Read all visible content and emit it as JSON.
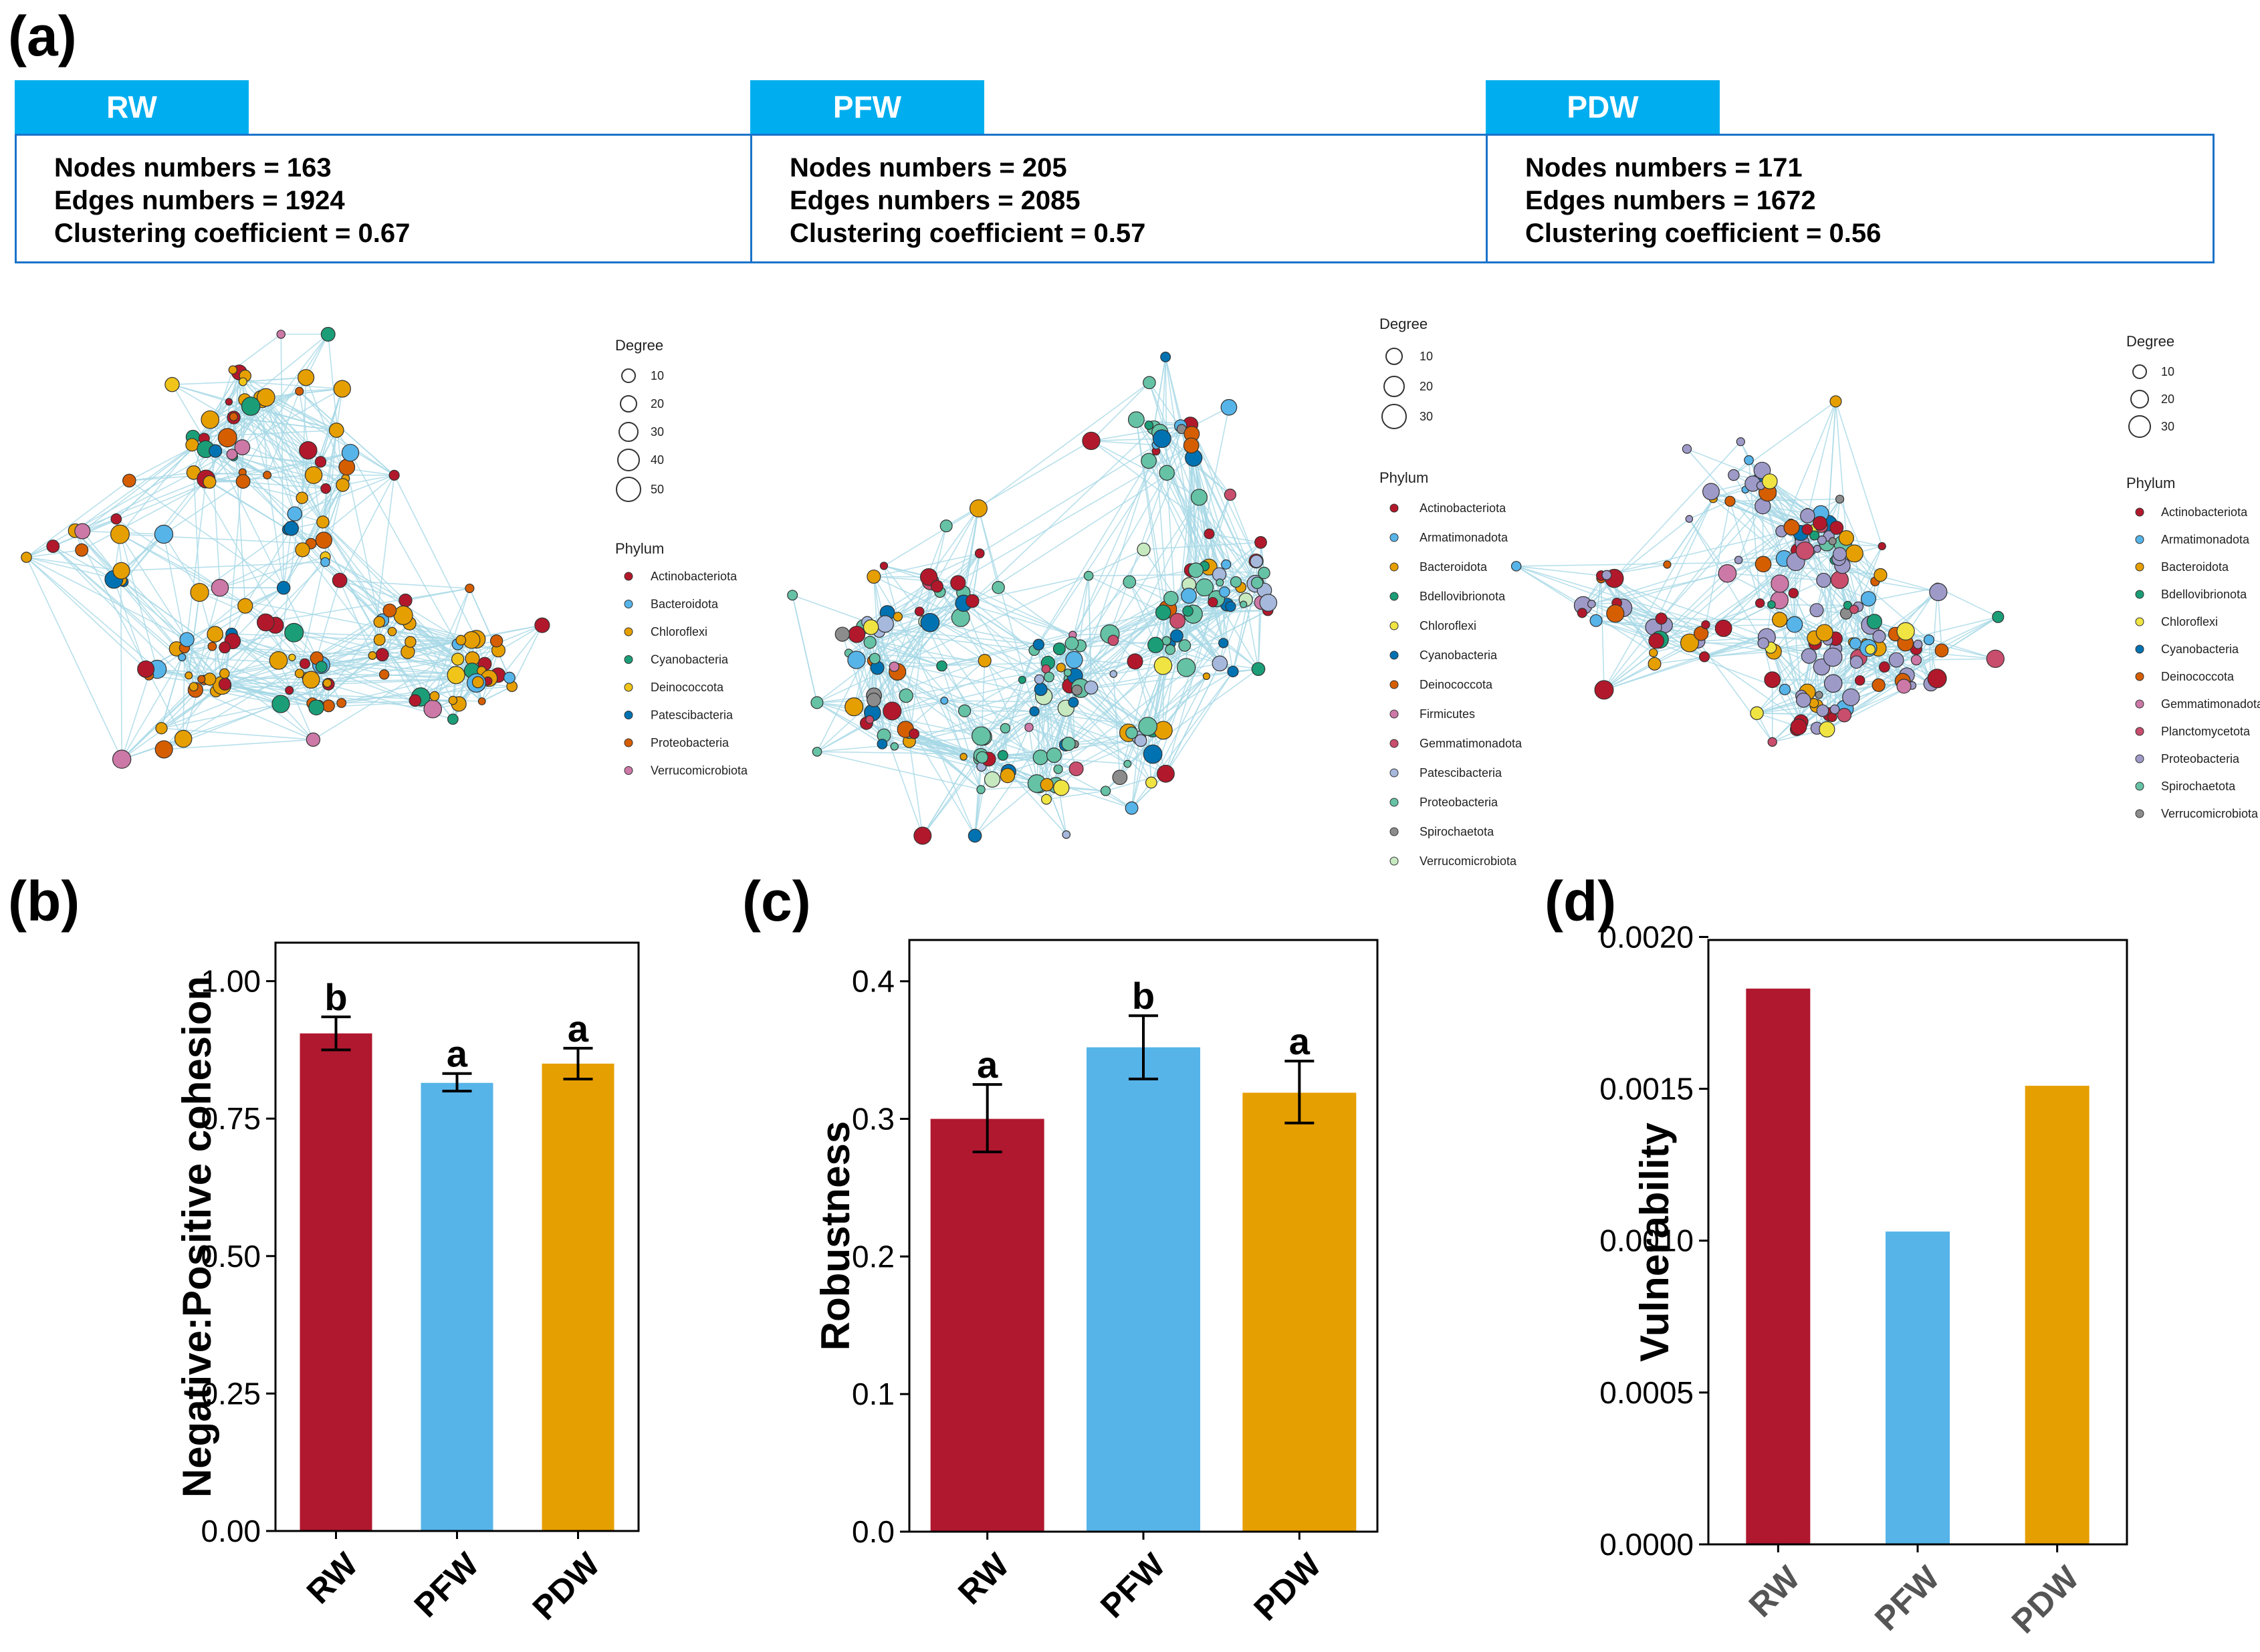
{
  "panels": {
    "a": "(a)",
    "b": "(b)",
    "c": "(c)",
    "d": "(d)"
  },
  "networks": [
    {
      "tab": "RW",
      "nodes_line": "Nodes numbers = 163",
      "edges_line": "Edges numbers = 1924",
      "clust_line": "Clustering coefficient = 0.67",
      "legend": {
        "degree_title": "Degree",
        "degree_sizes": [
          "10",
          "20",
          "30",
          "40",
          "50"
        ],
        "phylum_title": "Phylum",
        "phyla": [
          "Actinobacteriota",
          "Bacteroidota",
          "Chloroflexi",
          "Cyanobacteria",
          "Deinococcota",
          "Patescibacteria",
          "Proteobacteria",
          "Verrucomicrobiota"
        ],
        "colors": [
          "#b2182b",
          "#56b4e9",
          "#e69f00",
          "#1b9e77",
          "#f0c419",
          "#0072b2",
          "#d55e00",
          "#cc79a7"
        ]
      }
    },
    {
      "tab": "PFW",
      "nodes_line": "Nodes numbers = 205",
      "edges_line": "Edges numbers = 2085",
      "clust_line": "Clustering coefficient = 0.57",
      "legend": {
        "degree_title": "Degree",
        "degree_sizes": [
          "10",
          "20",
          "30"
        ],
        "phylum_title": "Phylum",
        "phyla": [
          "Actinobacteriota",
          "Armatimonadota",
          "Bacteroidota",
          "Bdellovibrionota",
          "Chloroflexi",
          "Cyanobacteria",
          "Deinococcota",
          "Firmicutes",
          "Gemmatimonadota",
          "Patescibacteria",
          "Proteobacteria",
          "Spirochaetota",
          "Verrucomicrobiota"
        ],
        "colors": [
          "#b2182b",
          "#56b4e9",
          "#e69f00",
          "#1b9e77",
          "#f0e442",
          "#0072b2",
          "#d55e00",
          "#cc79a7",
          "#c94d6d",
          "#a6b8dc",
          "#66c2a5",
          "#8c8c8c",
          "#c7e9c0"
        ]
      }
    },
    {
      "tab": "PDW",
      "nodes_line": "Nodes numbers = 171",
      "edges_line": "Edges numbers = 1672",
      "clust_line": "Clustering coefficient = 0.56",
      "legend": {
        "degree_title": "Degree",
        "degree_sizes": [
          "10",
          "20",
          "30"
        ],
        "phylum_title": "Phylum",
        "phyla": [
          "Actinobacteriota",
          "Armatimonadota",
          "Bacteroidota",
          "Bdellovibrionota",
          "Chloroflexi",
          "Cyanobacteria",
          "Deinococcota",
          "Gemmatimonadota",
          "Planctomycetota",
          "Proteobacteria",
          "Spirochaetota",
          "Verrucomicrobiota"
        ],
        "colors": [
          "#b2182b",
          "#56b4e9",
          "#e69f00",
          "#1b9e77",
          "#f0e442",
          "#0072b2",
          "#d55e00",
          "#cc79a7",
          "#c94d6d",
          "#9e9ac8",
          "#66c2a5",
          "#8c8c8c"
        ]
      }
    }
  ],
  "colors": {
    "RW": "#b0182f",
    "PFW": "#56b4e9",
    "PDW": "#e69f00",
    "edge": "#a6d8e6"
  },
  "chart_data": [
    {
      "id": "b",
      "type": "bar",
      "title": "",
      "xlabel": "",
      "ylabel": "Negative:Positive cohesion",
      "categories": [
        "RW",
        "PFW",
        "PDW"
      ],
      "values": [
        0.905,
        0.815,
        0.85
      ],
      "errors": [
        [
          0.875,
          0.935
        ],
        [
          0.8,
          0.832
        ],
        [
          0.822,
          0.878
        ]
      ],
      "significance": [
        "b",
        "a",
        "a"
      ],
      "ylim": [
        0,
        1.07
      ],
      "ticks": [
        0.0,
        0.25,
        0.5,
        0.75,
        1.0
      ],
      "tick_labels": [
        "0.00",
        "0.25",
        "0.50",
        "0.75",
        "1.00"
      ]
    },
    {
      "id": "c",
      "type": "bar",
      "title": "",
      "xlabel": "",
      "ylabel": "Robustness",
      "categories": [
        "RW",
        "PFW",
        "PDW"
      ],
      "values": [
        0.3,
        0.352,
        0.319
      ],
      "errors": [
        [
          0.276,
          0.325
        ],
        [
          0.329,
          0.375
        ],
        [
          0.297,
          0.342
        ]
      ],
      "significance": [
        "a",
        "b",
        "a"
      ],
      "ylim": [
        0,
        0.43
      ],
      "ticks": [
        0.0,
        0.1,
        0.2,
        0.3,
        0.4
      ],
      "tick_labels": [
        "0.0",
        "0.1",
        "0.2",
        "0.3",
        "0.4"
      ]
    },
    {
      "id": "d",
      "type": "bar",
      "title": "",
      "xlabel": "",
      "ylabel": "Vulnerability",
      "categories": [
        "RW",
        "PFW",
        "PDW"
      ],
      "values": [
        0.00183,
        0.00103,
        0.00151
      ],
      "ylim": [
        0,
        0.00199
      ],
      "ticks": [
        0.0,
        0.0005,
        0.001,
        0.0015,
        0.002
      ],
      "tick_labels": [
        "0.0000",
        "0.0005",
        "0.0010",
        "0.0015",
        "0.0020"
      ]
    }
  ]
}
